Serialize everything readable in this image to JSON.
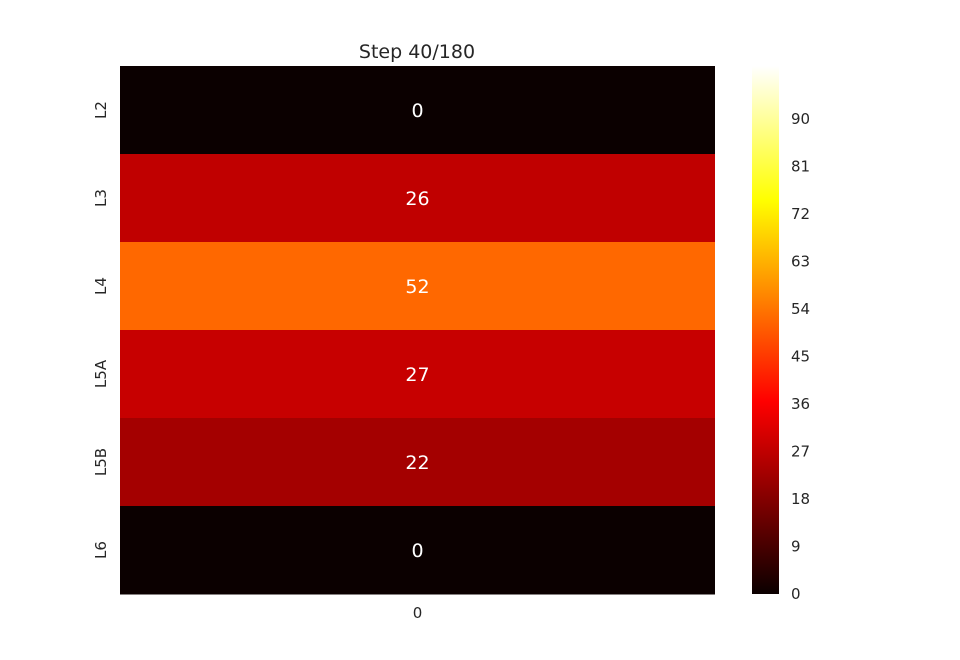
{
  "chart_data": {
    "type": "heatmap",
    "title": "Step 40/180",
    "rows": [
      "L2",
      "L3",
      "L4",
      "L5A",
      "L5B",
      "L6"
    ],
    "columns": [
      "0"
    ],
    "values": [
      [
        0
      ],
      [
        26
      ],
      [
        52
      ],
      [
        27
      ],
      [
        22
      ],
      [
        0
      ]
    ],
    "colormap": "hot",
    "vmin": 0,
    "vmax": 100,
    "colorbar_ticks": [
      "0",
      "9",
      "18",
      "27",
      "36",
      "45",
      "54",
      "63",
      "72",
      "81",
      "90"
    ],
    "annotations": true,
    "grid": false
  }
}
